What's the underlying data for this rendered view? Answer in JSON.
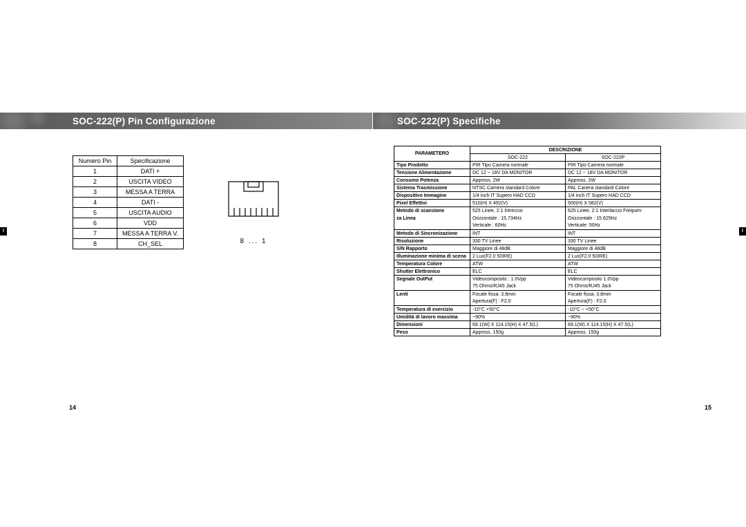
{
  "left": {
    "header": "SOC-222(P) Pin Configurazione",
    "sideTab": "I",
    "pageNum": "14",
    "pinTable": {
      "headers": [
        "Numero Pin",
        "Specificazione"
      ],
      "rows": [
        [
          "1",
          "DATI +"
        ],
        [
          "2",
          "USCITA VIDEO"
        ],
        [
          "3",
          "MESSA A TERRA"
        ],
        [
          "4",
          "DATI -"
        ],
        [
          "5",
          "USCITA AUDIO"
        ],
        [
          "6",
          "VDD"
        ],
        [
          "7",
          "MESSA A TERRA V."
        ],
        [
          "8",
          "CH_SEL"
        ]
      ]
    },
    "connectorLabel": "8    ...    1"
  },
  "right": {
    "header": "SOC-222(P) Specifiche",
    "sideTab": "I",
    "pageNum": "15",
    "specTable": {
      "paramHeader": "PARAMETERO",
      "descHeader": "DESCRIZIONE",
      "col1": "SOC-222",
      "col2": "SOC-222P",
      "rows": [
        {
          "p": "Tipo Prodotto",
          "a": "PIR Tipo Camera normale",
          "b": "PIR Tipo Camera normale"
        },
        {
          "p": "Tensione Alimentazione",
          "a": "DC 12 ~ 18V DA MONITOR",
          "b": "DC 12 ~ 18V DA MONITOR"
        },
        {
          "p": "Consumo Potenza",
          "a": "Appross. 2W",
          "b": "Appross. 2W"
        },
        {
          "p": "Sistema Trasmissione",
          "a": "NTSC Camera standard Colore",
          "b": "PAL Canera standard Colore"
        },
        {
          "p": "Dispositivo Immagine",
          "a": "1/4 inch IT Supero HAD CCD",
          "b": "1/4 inch IT Supero HAD CCD"
        },
        {
          "p": "Pixel Effettivi",
          "a": "510(H) X 492(V)",
          "b": "500(H) X 582(V)"
        },
        {
          "p": "Metodo di scansione",
          "a": "525 Linee, 2:1 Intreccio",
          "b": "625 Linee, 2:1 Interlaccio Frequen-"
        },
        {
          "p": "za Linea",
          "a": "Orizzontale : 15.734Hz",
          "b": "Orizzontale : 15.625Hz",
          "sub": true
        },
        {
          "p": "",
          "a": "Verticale : 60Hz",
          "b": "Verticale: 50Hz",
          "sub": true
        },
        {
          "p": "Metodo di Sincronizazione",
          "a": "INT",
          "b": "INT"
        },
        {
          "p": "Risoluzione",
          "a": "330 TV Linee",
          "b": "330 TV Linee"
        },
        {
          "p": "S/N Rapporto",
          "a": "Maggiore  di 48dB",
          "b": "Maggiore di 48dB"
        },
        {
          "p": "Illuminazione minima di scena",
          "a": "2 Lux(F2.0 50IRE)",
          "b": "2 Lux(F2.0 50IRE)"
        },
        {
          "p": "Temperatura Colore",
          "a": "ATW",
          "b": "ATW"
        },
        {
          "p": "Shutter Elettronico",
          "a": "ELC",
          "b": "ELC"
        },
        {
          "p": "Segnale OutPut",
          "a": "Videocomposito : 1.0Vpp",
          "b": "Videocomposito 1.0Vpp"
        },
        {
          "p": "",
          "a": "75 Ohms/RJ45 Jack",
          "b": "75 Ohms/RJ45 Jack",
          "sub": true
        },
        {
          "p": "Lenti",
          "a": "Focale fissa: 3.8mm",
          "b": "Focale fissa: 3.8mm"
        },
        {
          "p": "",
          "a": "Apertura(F) : F2.0",
          "b": "Apertura(F) : F2.0",
          "sub": true
        },
        {
          "p": "Temperatura  di esercizio",
          "a": "-10°C +50°C",
          "b": "-10°C ~ +50°C"
        },
        {
          "p": "Umidità di lavoro massima",
          "a": "~90%",
          "b": "~90%"
        },
        {
          "p": "Dimensioni",
          "a": "69.1(W) X 114.15(H) X 47.5(L)",
          "b": "69.1(W) X 114.15(H) X 47.5(L)"
        },
        {
          "p": "Peso",
          "a": "Appross. 150g",
          "b": "Appross. 150g"
        }
      ]
    }
  }
}
